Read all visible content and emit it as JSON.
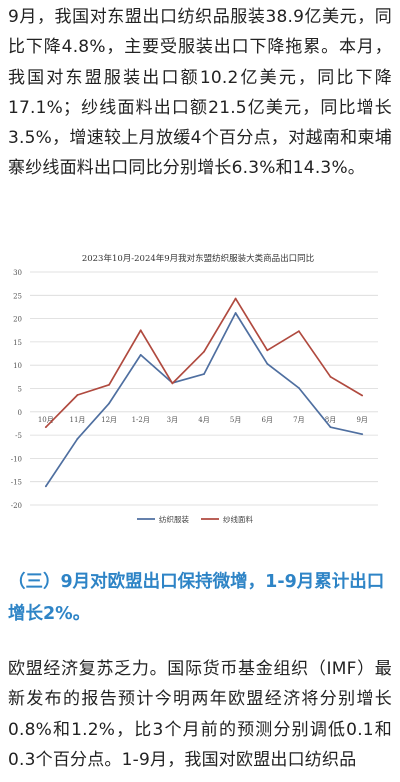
{
  "article": {
    "paragraph1": "9月，我国对东盟出口纺织品服装38.9亿美元，同比下降4.8%，主要受服装出口下降拖累。本月，我国对东盟服装出口额10.2亿美元，同比下降17.1%；纱线面料出口额21.5亿美元，同比增长3.5%，增速较上月放缓4个百分点，对越南和柬埔寨纱线面料出口同比分别增长6.3%和14.3%。",
    "section_heading": "（三）9月对欧盟出口保持微增，1-9月累计出口增长2%。",
    "paragraph2": "欧盟经济复苏乏力。国际货币基金组织（IMF）最新发布的报告预计今明两年欧盟经济将分别增长0.8%和1.2%，比3个月前的预测分别调低0.1和0.3个百分点。1-9月，我国对欧盟出口纺织品"
  },
  "chart_data": {
    "type": "line",
    "title": "2023年10月-2024年9月我对东盟纺织服装大类商品出口同比",
    "categories": [
      "10月",
      "11月",
      "12月",
      "1-2月",
      "3月",
      "4月",
      "5月",
      "6月",
      "7月",
      "8月",
      "9月"
    ],
    "series": [
      {
        "name": "纺织服装",
        "color": "#4f6fa0",
        "values": [
          -16.0,
          -5.8,
          1.8,
          12.2,
          6.2,
          8.1,
          21.2,
          10.3,
          5.1,
          -3.3,
          -4.8
        ]
      },
      {
        "name": "纱线面料",
        "color": "#b04a3f",
        "values": [
          -3.3,
          3.6,
          5.8,
          17.5,
          6.1,
          12.9,
          24.3,
          13.2,
          17.3,
          7.5,
          3.5
        ]
      }
    ],
    "ylim": [
      -20,
      30
    ],
    "yticks": [
      30,
      25,
      20,
      15,
      10,
      5,
      0,
      -5,
      -10,
      -15,
      -20
    ],
    "grid": true,
    "legend_position": "bottom"
  }
}
